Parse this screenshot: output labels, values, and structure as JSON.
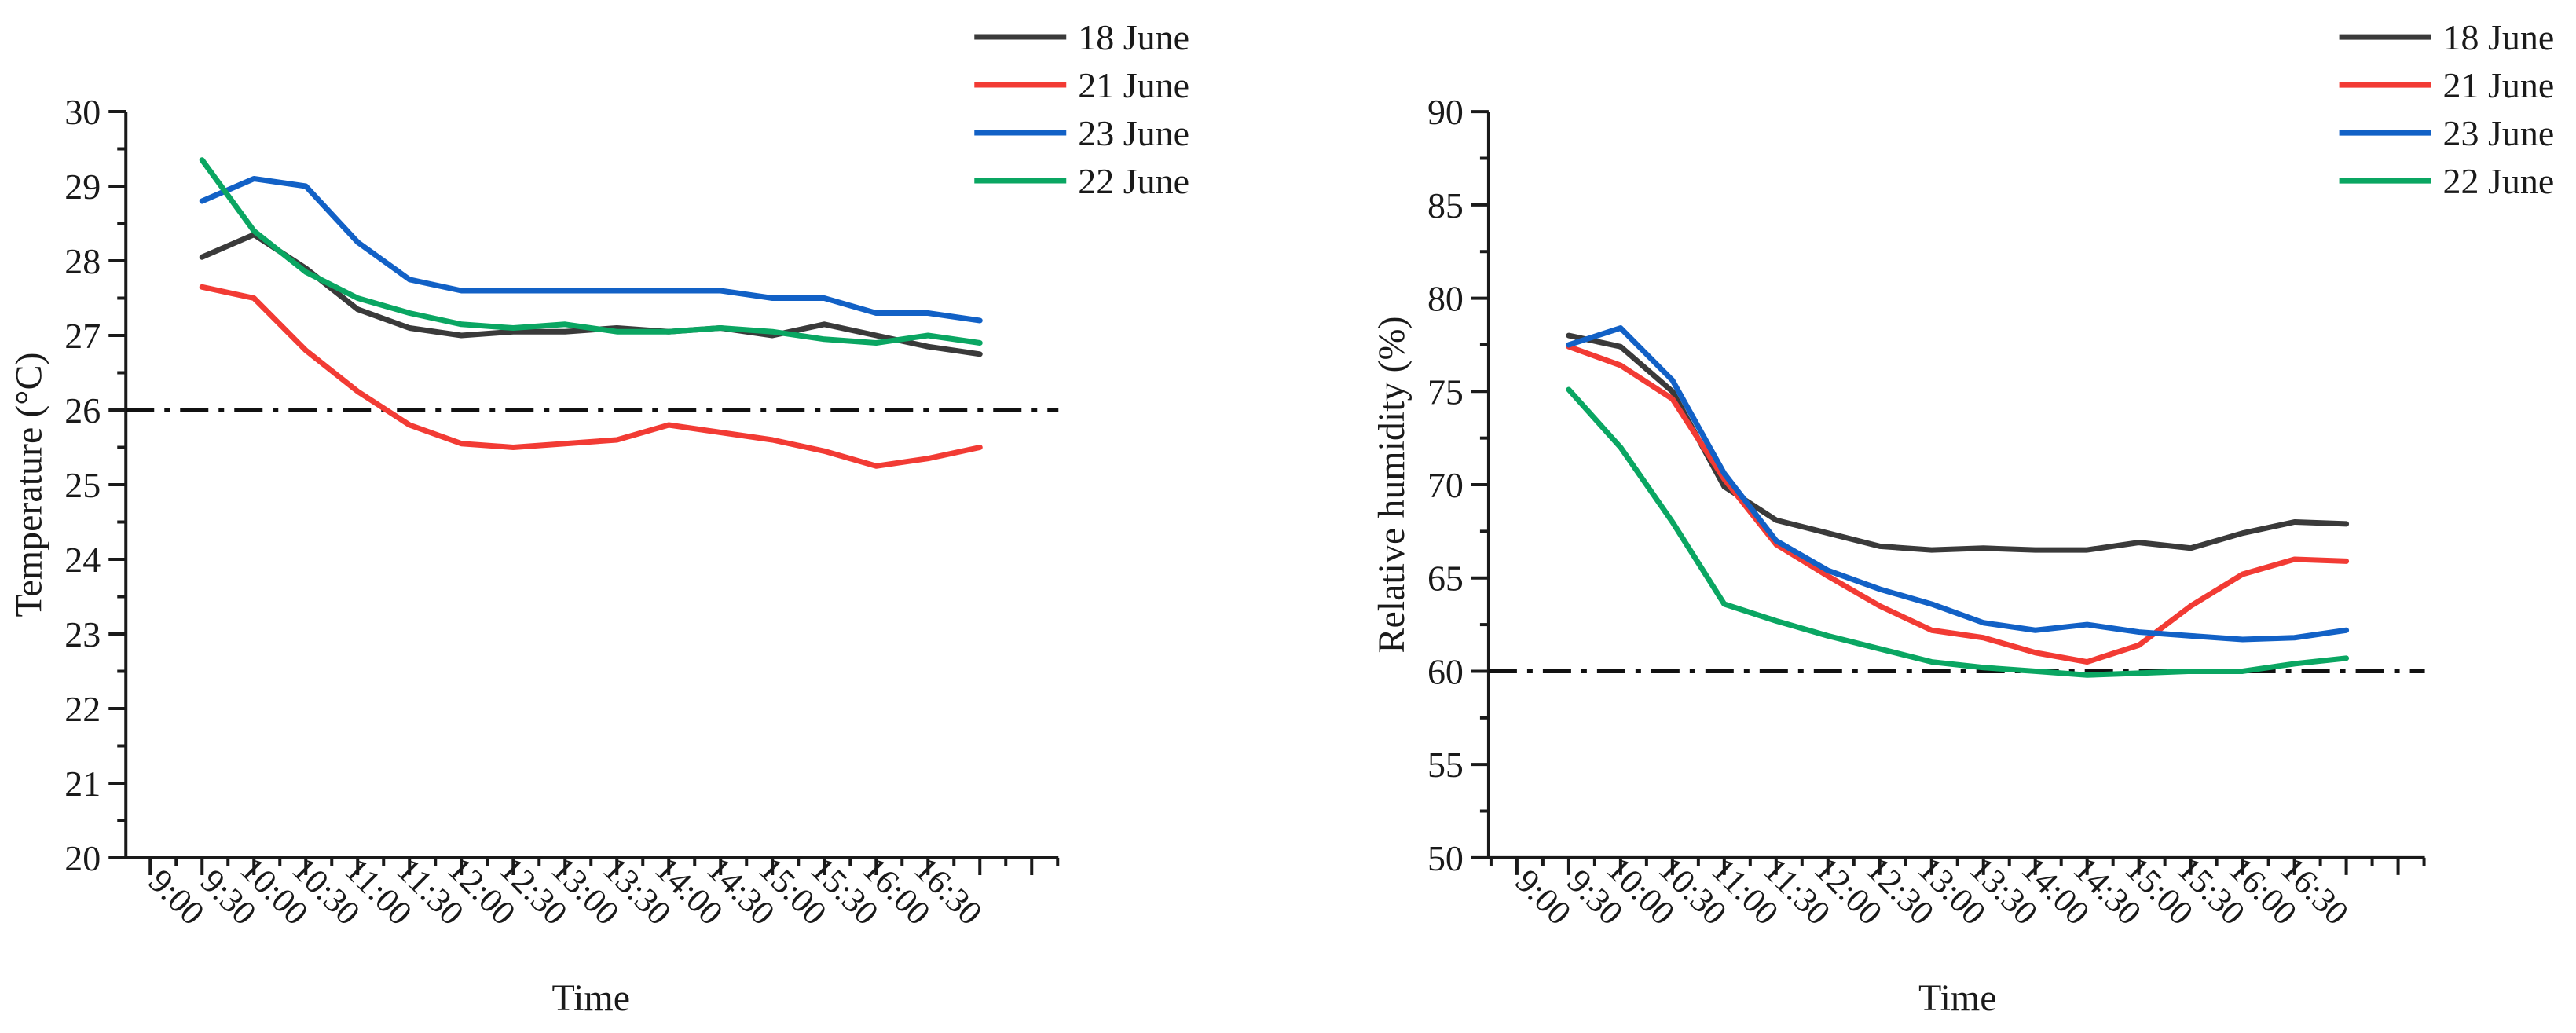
{
  "figure": {
    "background": "#ffffff",
    "text_color": "#1a1a1a",
    "axis_color": "#1a1a1a"
  },
  "legend": {
    "items": [
      {
        "label": "18 June",
        "color": "#3A3A3A"
      },
      {
        "label": "21 June",
        "color": "#F23B34"
      },
      {
        "label": "23 June",
        "color": "#1261C6"
      },
      {
        "label": "22 June",
        "color": "#0AA662"
      }
    ]
  },
  "chart_data": [
    {
      "type": "line",
      "title": "",
      "xlabel": "Time",
      "ylabel": "Temperature (°C)",
      "categories": [
        "9:00",
        "9:30",
        "10:00",
        "10:30",
        "11:00",
        "11:30",
        "12:00",
        "12:30",
        "13:00",
        "13:30",
        "14:00",
        "14:30",
        "15:00",
        "15:30",
        "16:00",
        "16:30"
      ],
      "ylim": [
        20,
        30
      ],
      "ytick_step": 1,
      "ytick_minor_step": 0.5,
      "grid": false,
      "legend_position": "top-right",
      "refline": {
        "value": 26,
        "style": "dash-dot",
        "color": "#111111"
      },
      "series": [
        {
          "name": "18 June",
          "color": "#3A3A3A",
          "values": [
            28.05,
            28.35,
            27.9,
            27.35,
            27.1,
            27.0,
            27.05,
            27.05,
            27.1,
            27.05,
            27.1,
            27.0,
            27.15,
            27.0,
            26.85,
            26.75
          ]
        },
        {
          "name": "21 June",
          "color": "#F23B34",
          "values": [
            27.65,
            27.5,
            26.8,
            26.25,
            25.8,
            25.55,
            25.5,
            25.55,
            25.6,
            25.8,
            25.7,
            25.6,
            25.45,
            25.25,
            25.35,
            25.5
          ]
        },
        {
          "name": "23 June",
          "color": "#1261C6",
          "values": [
            28.8,
            29.1,
            29.0,
            28.25,
            27.75,
            27.6,
            27.6,
            27.6,
            27.6,
            27.6,
            27.6,
            27.5,
            27.5,
            27.3,
            27.3,
            27.2
          ]
        },
        {
          "name": "22 June",
          "color": "#0AA662",
          "values": [
            29.35,
            28.4,
            27.85,
            27.5,
            27.3,
            27.15,
            27.1,
            27.15,
            27.05,
            27.05,
            27.1,
            27.05,
            26.95,
            26.9,
            27.0,
            26.9
          ]
        }
      ]
    },
    {
      "type": "line",
      "title": "",
      "xlabel": "Time",
      "ylabel": "Relative humidity (%)",
      "categories": [
        "9:00",
        "9:30",
        "10:00",
        "10:30",
        "11:00",
        "11:30",
        "12:00",
        "12:30",
        "13:00",
        "13:30",
        "14:00",
        "14:30",
        "15:00",
        "15:30",
        "16:00",
        "16:30"
      ],
      "ylim": [
        50,
        90
      ],
      "ytick_step": 5,
      "ytick_minor_step": 2.5,
      "grid": false,
      "legend_position": "top-right",
      "refline": {
        "value": 60,
        "style": "dash-dot",
        "color": "#111111"
      },
      "series": [
        {
          "name": "18 June",
          "color": "#3A3A3A",
          "values": [
            78.0,
            77.4,
            75.0,
            69.9,
            68.1,
            67.4,
            66.7,
            66.5,
            66.6,
            66.5,
            66.5,
            66.9,
            66.6,
            67.4,
            68.0,
            67.9
          ]
        },
        {
          "name": "21 June",
          "color": "#F23B34",
          "values": [
            77.4,
            76.4,
            74.6,
            70.3,
            66.8,
            65.1,
            63.5,
            62.2,
            61.8,
            61.0,
            60.5,
            61.4,
            63.5,
            65.2,
            66.0,
            65.9
          ]
        },
        {
          "name": "23 June",
          "color": "#1261C6",
          "values": [
            77.5,
            78.4,
            75.6,
            70.6,
            67.0,
            65.4,
            64.4,
            63.6,
            62.6,
            62.2,
            62.5,
            62.1,
            61.9,
            61.7,
            61.8,
            62.2
          ]
        },
        {
          "name": "22 June",
          "color": "#0AA662",
          "values": [
            75.1,
            72.0,
            68.0,
            63.6,
            62.7,
            61.9,
            61.2,
            60.5,
            60.2,
            60.0,
            59.8,
            59.9,
            60.0,
            60.0,
            60.4,
            60.7
          ]
        }
      ]
    }
  ]
}
